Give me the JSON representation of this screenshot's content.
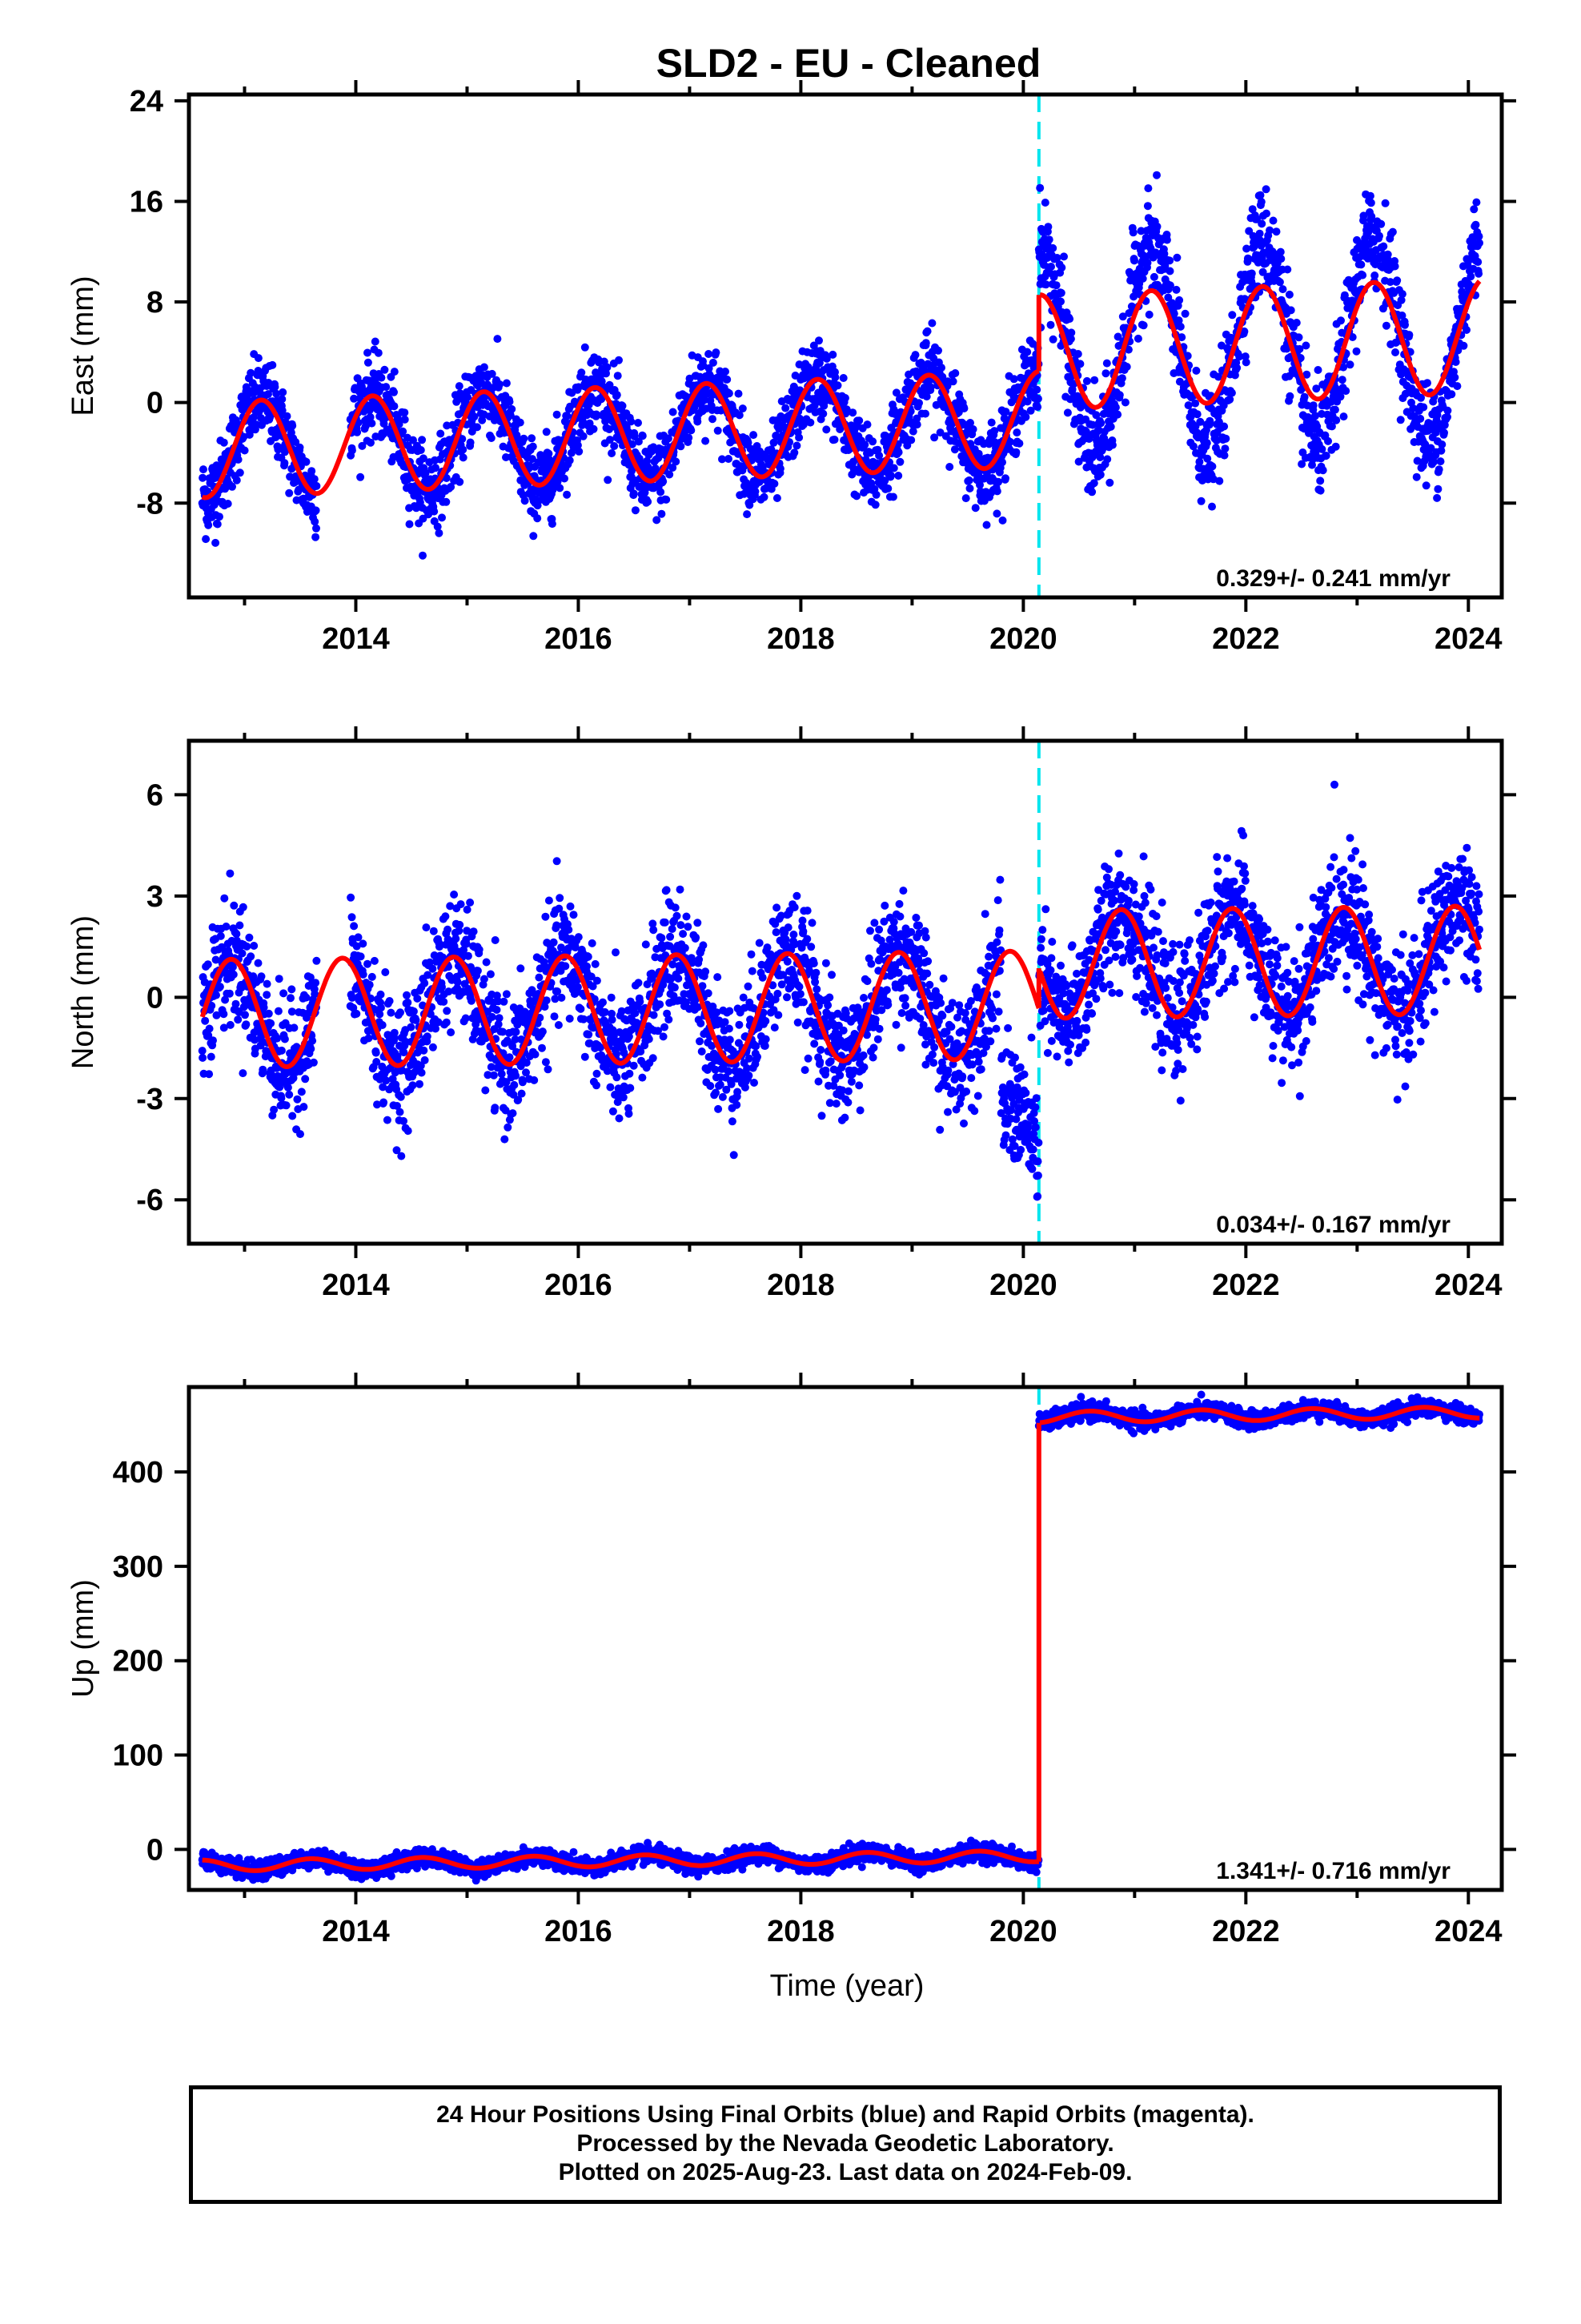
{
  "chart_data": {
    "title": "SLD2  - EU - Cleaned",
    "footer": {
      "line1": "24 Hour Positions Using Final Orbits (blue) and Rapid Orbits (magenta).",
      "line2": "Processed by the Nevada Geodetic Laboratory.",
      "line3": "Plotted on 2025-Aug-23. Last data on 2024-Feb-09."
    },
    "colors": {
      "points": "#0000ff",
      "model": "#ff0000",
      "event_line": "#00e5ee",
      "axis": "#000000"
    },
    "xlabel": "Time (year)",
    "x_ticks": [
      "2014",
      "2016",
      "2018",
      "2020",
      "2022",
      "2024"
    ],
    "xlim": [
      2012.5,
      2024.3
    ],
    "event_year": 2020.14,
    "panels": [
      {
        "id": "east",
        "type": "scatter",
        "ylabel": "East (mm)",
        "ylim": [
          -15.5,
          24.5
        ],
        "yticks": [
          "24",
          "16",
          "8",
          "0",
          "-8"
        ],
        "ytick_values": [
          24,
          16,
          8,
          0,
          -8
        ],
        "rate_text": "0.329+/- 0.241 mm/yr",
        "model": {
          "offset_before": -2.0,
          "offset_after": 3.3,
          "rate": 0.33,
          "annual_amp": 3.8,
          "annual_phase": 2012.9,
          "noise": 1.6
        },
        "data_range": [
          2012.62,
          2024.1
        ]
      },
      {
        "id": "north",
        "type": "scatter",
        "ylabel": "North (mm)",
        "ylim": [
          -7.3,
          7.6
        ],
        "yticks": [
          "6",
          "3",
          "0",
          "-3",
          "-6"
        ],
        "ytick_values": [
          6,
          3,
          0,
          -3,
          -6
        ],
        "rate_text": "0.034+/- 0.167 mm/yr",
        "model": {
          "offset_before": -0.3,
          "offset_after": 0.9,
          "rate": 0.034,
          "annual_amp": 1.6,
          "annual_phase": 2012.63,
          "noise": 0.9
        },
        "data_range": [
          2012.62,
          2024.1
        ]
      },
      {
        "id": "up",
        "type": "scatter",
        "ylabel": "Up (mm)",
        "ylim": [
          -43,
          490
        ],
        "yticks": [
          "400",
          "300",
          "200",
          "100",
          "0"
        ],
        "ytick_values": [
          400,
          300,
          200,
          100,
          0
        ],
        "rate_text": "1.341+/- 0.716 mm/yr",
        "model": {
          "offset_before": -10,
          "offset_after": 455,
          "rate": 1.34,
          "annual_amp": 6,
          "annual_phase": 2012.35,
          "noise": 4.5
        },
        "data_range": [
          2012.62,
          2024.1
        ]
      }
    ]
  }
}
